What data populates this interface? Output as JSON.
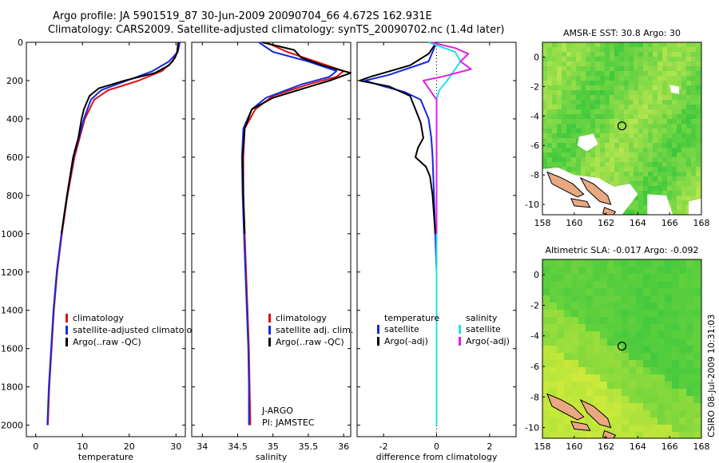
{
  "titles": {
    "line1": "Argo profile: JA 5901519_87 30-Jun-2009 20090704_66 4.672S 162.931E",
    "line2": "Climatology: CARS2009. Satellite-adjusted climatology: synTS_20090702.nc (1.4d later)"
  },
  "side_label": "CSIRO 08-Jul-2009 10:31:03",
  "agency": {
    "line1": "J-ARGO",
    "line2": "PI: JAMSTEC"
  },
  "colors": {
    "climatology": "#e01010",
    "satellite": "#1428e0",
    "argo": "#000000",
    "satellite_sal_diff": "#20e0f0",
    "argo_sal_diff": "#e020e0",
    "land": "#e8a882"
  },
  "chart_data": [
    {
      "id": "temperature",
      "type": "line",
      "xlabel": "temperature",
      "ylabel": "",
      "xlim": [
        -2,
        32
      ],
      "ylim": [
        2060,
        0
      ],
      "xticks": [
        0,
        10,
        20,
        30
      ],
      "yticks": [
        0,
        200,
        400,
        600,
        800,
        1000,
        1200,
        1400,
        1600,
        1800,
        2000
      ],
      "legend": [
        "climatology",
        "satellite-adjusted climatology",
        "Argo(..raw -QC)"
      ],
      "series": [
        {
          "name": "climatology",
          "color": "#e01010",
          "points": [
            [
              30.5,
              0
            ],
            [
              30.2,
              50
            ],
            [
              29.3,
              100
            ],
            [
              27,
              150
            ],
            [
              22,
              200
            ],
            [
              15.5,
              250
            ],
            [
              12.5,
              300
            ],
            [
              10.5,
              400
            ],
            [
              9.4,
              500
            ],
            [
              8.3,
              600
            ],
            [
              6.8,
              800
            ],
            [
              5.6,
              1000
            ],
            [
              4.6,
              1200
            ],
            [
              3.9,
              1400
            ],
            [
              3.4,
              1600
            ],
            [
              2.9,
              1800
            ],
            [
              2.6,
              2000
            ]
          ]
        },
        {
          "name": "satellite-adjusted climatology",
          "color": "#1428e0",
          "points": [
            [
              30.8,
              0
            ],
            [
              30.4,
              50
            ],
            [
              28.5,
              100
            ],
            [
              25,
              150
            ],
            [
              19.5,
              200
            ],
            [
              14,
              250
            ],
            [
              11.8,
              300
            ],
            [
              10.3,
              400
            ],
            [
              9.2,
              500
            ],
            [
              8.1,
              600
            ],
            [
              6.7,
              800
            ],
            [
              5.5,
              1000
            ],
            [
              4.5,
              1200
            ],
            [
              3.8,
              1400
            ],
            [
              3.3,
              1600
            ],
            [
              2.8,
              1800
            ],
            [
              2.5,
              2000
            ]
          ]
        },
        {
          "name": "Argo(..raw -QC)",
          "color": "#000000",
          "points": [
            [
              30.5,
              0
            ],
            [
              30.3,
              50
            ],
            [
              29.8,
              80
            ],
            [
              28.5,
              120
            ],
            [
              25.5,
              160
            ],
            [
              19,
              200
            ],
            [
              13.5,
              240
            ],
            [
              11.5,
              280
            ],
            [
              10.3,
              350
            ],
            [
              9.8,
              400
            ],
            [
              9.1,
              500
            ],
            [
              8.0,
              600
            ],
            [
              6.7,
              800
            ],
            [
              5.5,
              1000
            ]
          ]
        }
      ]
    },
    {
      "id": "salinity",
      "type": "line",
      "xlabel": "salinity",
      "ylabel": "",
      "xlim": [
        33.85,
        36.1
      ],
      "ylim": [
        2060,
        0
      ],
      "xticks": [
        34,
        34.5,
        35,
        35.5,
        36
      ],
      "yticks": [],
      "legend": [
        "climatology",
        "satellite adj. clim.",
        "Argo(..raw -QC)"
      ],
      "series": [
        {
          "name": "climatology",
          "color": "#e01010",
          "points": [
            [
              34.9,
              0
            ],
            [
              35.2,
              50
            ],
            [
              35.6,
              100
            ],
            [
              36.0,
              150
            ],
            [
              35.9,
              180
            ],
            [
              35.5,
              220
            ],
            [
              35.0,
              280
            ],
            [
              34.75,
              350
            ],
            [
              34.6,
              450
            ],
            [
              34.58,
              600
            ],
            [
              34.58,
              800
            ],
            [
              34.6,
              1000
            ],
            [
              34.62,
              1200
            ],
            [
              34.64,
              1400
            ],
            [
              34.66,
              1600
            ],
            [
              34.67,
              1800
            ],
            [
              34.68,
              2000
            ]
          ]
        },
        {
          "name": "satellite adj. clim.",
          "color": "#1428e0",
          "points": [
            [
              34.8,
              0
            ],
            [
              35.0,
              50
            ],
            [
              35.5,
              100
            ],
            [
              35.9,
              150
            ],
            [
              35.8,
              180
            ],
            [
              35.4,
              220
            ],
            [
              34.9,
              290
            ],
            [
              34.7,
              350
            ],
            [
              34.58,
              450
            ],
            [
              34.56,
              600
            ],
            [
              34.57,
              800
            ],
            [
              34.59,
              1000
            ],
            [
              34.61,
              1200
            ],
            [
              34.63,
              1400
            ],
            [
              34.65,
              1600
            ],
            [
              34.66,
              1800
            ],
            [
              34.66,
              2000
            ]
          ]
        },
        {
          "name": "Argo(..raw -QC)",
          "color": "#000000",
          "points": [
            [
              34.85,
              0
            ],
            [
              35.3,
              40
            ],
            [
              35.4,
              80
            ],
            [
              35.7,
              120
            ],
            [
              36.1,
              160
            ],
            [
              35.8,
              200
            ],
            [
              35.35,
              250
            ],
            [
              35.0,
              290
            ],
            [
              34.7,
              350
            ],
            [
              34.6,
              450
            ],
            [
              34.57,
              600
            ],
            [
              34.58,
              800
            ],
            [
              34.6,
              1000
            ]
          ]
        }
      ]
    },
    {
      "id": "difference",
      "type": "line",
      "xlabel": "difference from climatology",
      "ylabel": "",
      "xlim": [
        -3,
        3
      ],
      "ylim": [
        2060,
        0
      ],
      "xticks": [
        -2,
        0,
        2
      ],
      "yticks": [],
      "legend_temperature": [
        "temperature",
        "satellite",
        "Argo(-adj)"
      ],
      "legend_salinity": [
        "salinity",
        "satellite",
        "Argo(-adj)"
      ],
      "series": [
        {
          "name": "temperature satellite",
          "color": "#1428e0",
          "points": [
            [
              0,
              0
            ],
            [
              -0.3,
              100
            ],
            [
              -1.8,
              170
            ],
            [
              -2.7,
              200
            ],
            [
              -2.0,
              230
            ],
            [
              -1.2,
              260
            ],
            [
              -0.6,
              300
            ],
            [
              -0.3,
              400
            ],
            [
              -0.2,
              500
            ],
            [
              -0.15,
              600
            ],
            [
              -0.1,
              800
            ],
            [
              -0.05,
              1000
            ],
            [
              0,
              1200
            ],
            [
              0,
              1400
            ],
            [
              0,
              1600
            ],
            [
              0,
              1800
            ],
            [
              0,
              2000
            ]
          ]
        },
        {
          "name": "temperature Argo(-adj)",
          "color": "#000000",
          "points": [
            [
              0,
              0
            ],
            [
              -0.3,
              60
            ],
            [
              -1.0,
              120
            ],
            [
              -2.5,
              180
            ],
            [
              -2.9,
              200
            ],
            [
              -1.8,
              230
            ],
            [
              -1.0,
              280
            ],
            [
              -0.8,
              350
            ],
            [
              -0.6,
              420
            ],
            [
              -0.5,
              500
            ],
            [
              -0.7,
              550
            ],
            [
              -0.8,
              600
            ],
            [
              -0.4,
              650
            ],
            [
              -0.25,
              700
            ],
            [
              -0.15,
              800
            ],
            [
              -0.1,
              900
            ],
            [
              -0.05,
              1000
            ]
          ]
        },
        {
          "name": "salinity satellite",
          "color": "#20e0f0",
          "points": [
            [
              -0.3,
              0
            ],
            [
              0.7,
              50
            ],
            [
              0.9,
              100
            ],
            [
              0.7,
              140
            ],
            [
              0.4,
              200
            ],
            [
              0.1,
              250
            ],
            [
              0,
              300
            ],
            [
              0,
              500
            ],
            [
              0,
              800
            ],
            [
              0,
              1000
            ],
            [
              0,
              1400
            ],
            [
              0,
              2000
            ]
          ]
        },
        {
          "name": "salinity Argo(-adj)",
          "color": "#e020e0",
          "points": [
            [
              -0.2,
              0
            ],
            [
              0.7,
              30
            ],
            [
              1.2,
              60
            ],
            [
              0.9,
              100
            ],
            [
              1.3,
              140
            ],
            [
              0.2,
              180
            ],
            [
              -0.5,
              200
            ],
            [
              -0.3,
              240
            ],
            [
              0,
              300
            ],
            [
              0,
              1000
            ]
          ]
        }
      ]
    },
    {
      "id": "sst_map",
      "type": "heatmap",
      "title": "AMSR-E SST: 30.8 Argo: 30",
      "xlim": [
        158,
        168
      ],
      "ylim": [
        -10.7,
        1.0
      ],
      "xticks": [
        158,
        160,
        162,
        164,
        166,
        168
      ],
      "yticks": [
        0,
        -2,
        -4,
        -6,
        -8,
        -10
      ],
      "marker": [
        163.0,
        -4.67
      ]
    },
    {
      "id": "sla_map",
      "type": "heatmap",
      "title": "Altimetric SLA: -0.017 Argo: -0.092",
      "xlim": [
        158,
        168
      ],
      "ylim": [
        -10.7,
        1.0
      ],
      "xticks": [
        158,
        160,
        162,
        164,
        166,
        168
      ],
      "yticks": [
        0,
        -2,
        -4,
        -6,
        -8,
        -10
      ],
      "marker": [
        163.0,
        -4.67
      ]
    }
  ]
}
